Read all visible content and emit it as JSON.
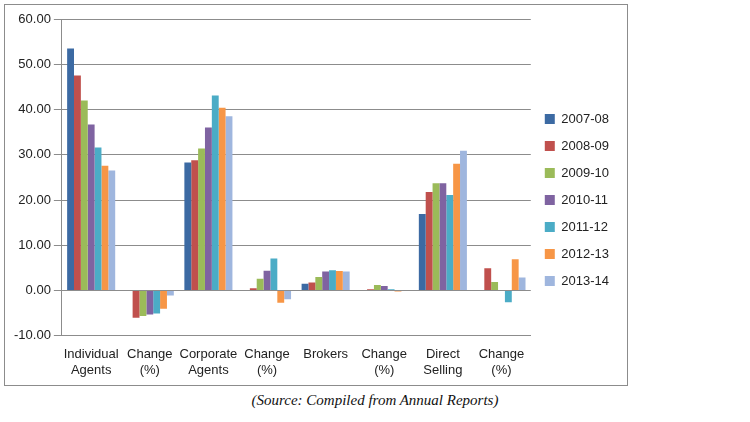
{
  "chart_data": {
    "type": "bar",
    "annotations": [
      "(Source: Compiled from Annual Reports)"
    ],
    "categories": [
      "Individual Agents",
      "Change (%)",
      "Corporate Agents",
      "Change (%)",
      "Brokers",
      "Change (%)",
      "Direct Selling",
      "Change (%)"
    ],
    "series": [
      {
        "name": "2007-08",
        "color": "#3c6aa3",
        "values": [
          53.5,
          null,
          28.3,
          null,
          1.5,
          null,
          16.9,
          null
        ]
      },
      {
        "name": "2008-09",
        "color": "#c0504d",
        "values": [
          47.5,
          -6.0,
          28.8,
          0.5,
          1.8,
          0.3,
          21.8,
          4.9
        ]
      },
      {
        "name": "2009-10",
        "color": "#9bbb59",
        "values": [
          42.0,
          -5.6,
          31.4,
          2.6,
          3.0,
          1.2,
          23.7,
          1.9
        ]
      },
      {
        "name": "2010-11",
        "color": "#7f63a1",
        "values": [
          36.7,
          -5.3,
          36.0,
          4.4,
          4.2,
          1.0,
          23.7,
          0.0
        ]
      },
      {
        "name": "2011-12",
        "color": "#4bacc6",
        "values": [
          31.6,
          -5.1,
          43.1,
          7.1,
          4.5,
          0.3,
          21.1,
          -2.6
        ]
      },
      {
        "name": "2012-13",
        "color": "#f79646",
        "values": [
          27.6,
          -4.0,
          40.4,
          -2.7,
          4.3,
          -0.2,
          28.0,
          6.9
        ]
      },
      {
        "name": "2013-14",
        "color": "#9fb6de",
        "values": [
          26.5,
          -1.1,
          38.5,
          -1.9,
          4.2,
          -0.1,
          30.9,
          2.9
        ]
      }
    ],
    "ylim": [
      -10,
      60
    ],
    "yticks": [
      {
        "value": -10,
        "label": "-10.00"
      },
      {
        "value": 0,
        "label": "0.00"
      },
      {
        "value": 10,
        "label": "10.00"
      },
      {
        "value": 20,
        "label": "20.00"
      },
      {
        "value": 30,
        "label": "30.00"
      },
      {
        "value": 40,
        "label": "40.00"
      },
      {
        "value": 50,
        "label": "50.00"
      },
      {
        "value": 60,
        "label": "60.00"
      }
    ],
    "grid": true,
    "legend": "right"
  }
}
